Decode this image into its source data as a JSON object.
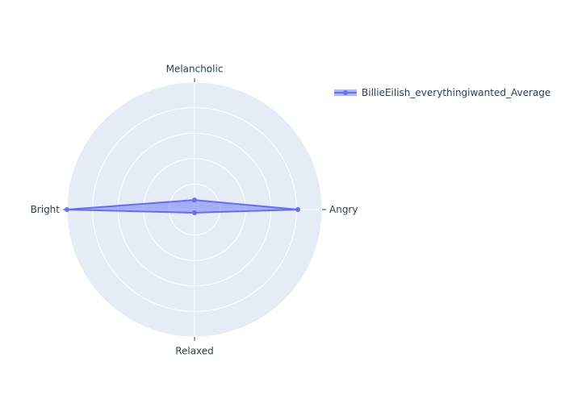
{
  "chart_data": {
    "type": "radar",
    "title": "",
    "axes": [
      "Melancholic",
      "Angry",
      "Relaxed",
      "Bright"
    ],
    "radial_range": [
      0,
      1
    ],
    "grid": true,
    "legend_position": "top-right",
    "series": [
      {
        "name": "BillieEilish_everythingiwanted_Average",
        "values": [
          0.075,
          0.81,
          0.025,
          1.0
        ],
        "color": "#636efa",
        "fill_color": "#636efa",
        "fill_opacity": 0.5
      }
    ]
  },
  "colors": {
    "polar_background": "#e5ecf6",
    "grid": "#ffffff",
    "text": "#2a3f5f",
    "tick": "#444444"
  }
}
